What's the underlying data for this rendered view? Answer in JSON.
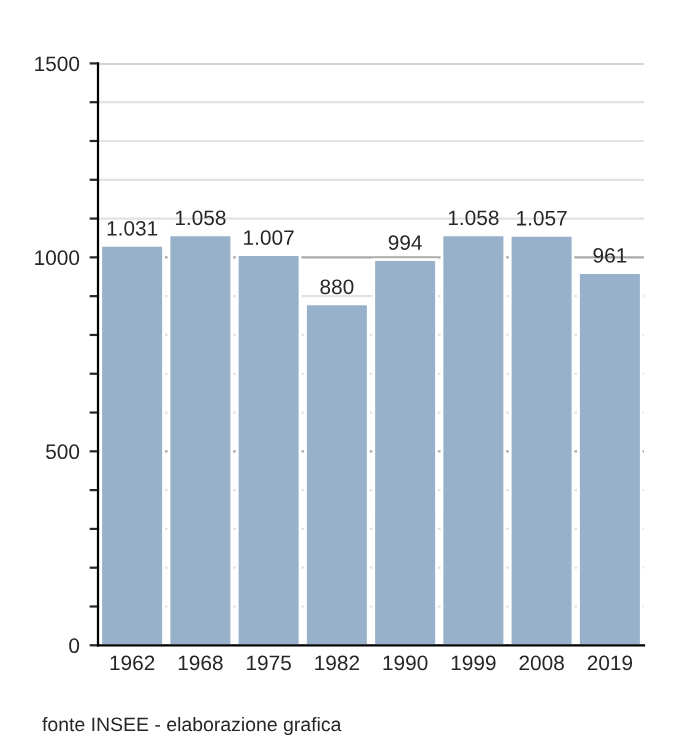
{
  "chart_data": {
    "type": "bar",
    "categories": [
      "1962",
      "1968",
      "1975",
      "1982",
      "1990",
      "1999",
      "2008",
      "2019"
    ],
    "values": [
      1031,
      1058,
      1007,
      880,
      994,
      1058,
      1057,
      961
    ],
    "value_labels": [
      "1.031",
      "1.058",
      "1.007",
      "880",
      "994",
      "1.058",
      "1.057",
      "961"
    ],
    "color": "#98b1cb",
    "ylim": [
      0,
      1500
    ],
    "yticks": [
      0,
      {
        "value": 100,
        "label": null
      },
      {
        "value": 200,
        "label": null
      },
      {
        "value": 300,
        "label": null
      },
      {
        "value": 400,
        "label": null
      },
      500,
      {
        "value": 600,
        "label": null
      },
      {
        "value": 700,
        "label": null
      },
      {
        "value": 800,
        "label": null
      },
      {
        "value": 900,
        "label": null
      },
      1000,
      {
        "value": 1100,
        "label": null
      },
      {
        "value": 1200,
        "label": null
      },
      {
        "value": 1300,
        "label": null
      },
      {
        "value": 1400,
        "label": null
      },
      1500
    ],
    "grid": "y",
    "annotations": [
      "fonte INSEE - elaborazione grafica"
    ]
  }
}
